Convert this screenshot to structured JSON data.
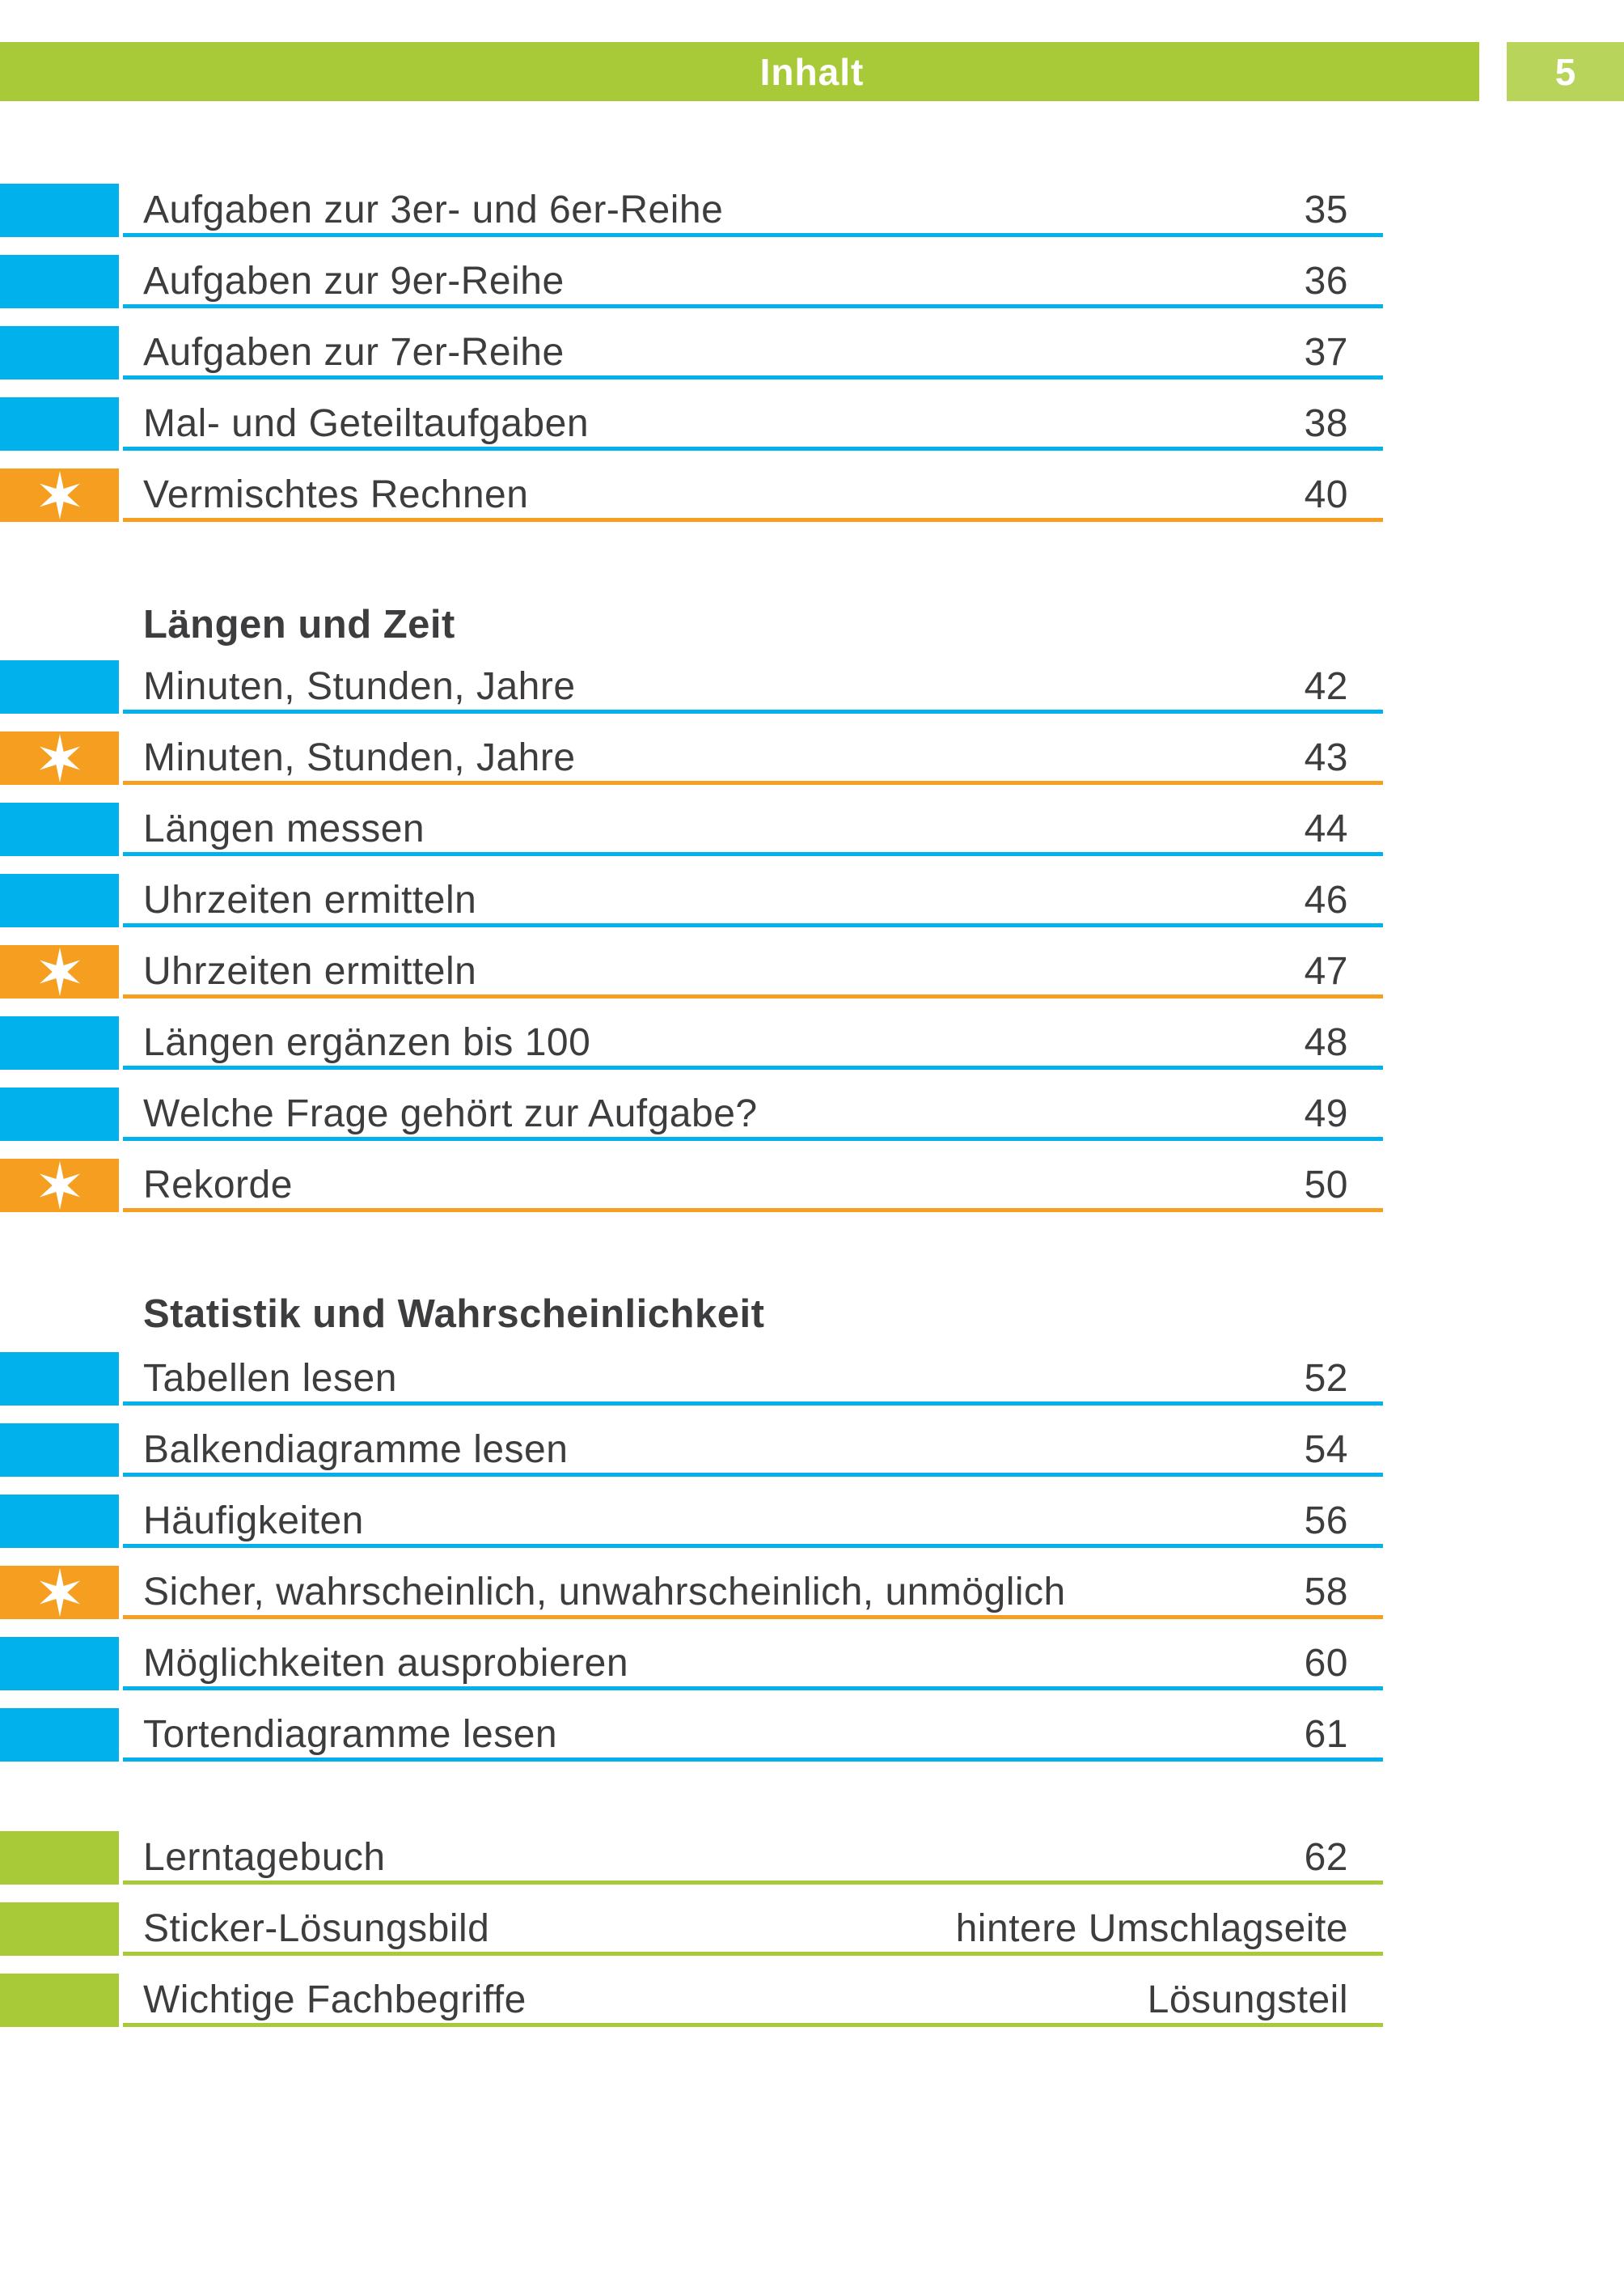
{
  "header": {
    "title": "Inhalt",
    "page_number": "5"
  },
  "colors": {
    "blue": "#00b1eb",
    "orange": "#f59e1f",
    "green": "#a9ca38",
    "green_light": "#b9d45a",
    "text": "#3d3d3f",
    "white": "#ffffff"
  },
  "icons": {
    "star": "star-icon"
  },
  "sections": [
    {
      "heading": null,
      "rows": [
        {
          "label": "Aufgaben zur 3er- und 6er-Reihe",
          "page": "35",
          "type": "blue"
        },
        {
          "label": "Aufgaben zur 9er-Reihe",
          "page": "36",
          "type": "blue"
        },
        {
          "label": "Aufgaben zur 7er-Reihe",
          "page": "37",
          "type": "blue"
        },
        {
          "label": "Mal- und Geteiltaufgaben",
          "page": "38",
          "type": "blue"
        },
        {
          "label": "Vermischtes Rechnen",
          "page": "40",
          "type": "star"
        }
      ]
    },
    {
      "heading": "Längen und Zeit",
      "rows": [
        {
          "label": "Minuten, Stunden, Jahre",
          "page": "42",
          "type": "blue"
        },
        {
          "label": "Minuten, Stunden, Jahre",
          "page": "43",
          "type": "star"
        },
        {
          "label": "Längen messen",
          "page": "44",
          "type": "blue"
        },
        {
          "label": "Uhrzeiten ermitteln",
          "page": "46",
          "type": "blue"
        },
        {
          "label": "Uhrzeiten ermitteln",
          "page": "47",
          "type": "star"
        },
        {
          "label": "Längen ergänzen bis 100",
          "page": "48",
          "type": "blue"
        },
        {
          "label": "Welche Frage gehört zur Aufgabe?",
          "page": "49",
          "type": "blue"
        },
        {
          "label": "Rekorde",
          "page": "50",
          "type": "star"
        }
      ]
    },
    {
      "heading": "Statistik und Wahrscheinlichkeit",
      "rows": [
        {
          "label": "Tabellen lesen",
          "page": "52",
          "type": "blue"
        },
        {
          "label": "Balkendiagramme lesen",
          "page": "54",
          "type": "blue"
        },
        {
          "label": "Häufigkeiten",
          "page": "56",
          "type": "blue"
        },
        {
          "label": "Sicher, wahrscheinlich, unwahrscheinlich, unmöglich",
          "page": "58",
          "type": "star"
        },
        {
          "label": "Möglichkeiten ausprobieren",
          "page": "60",
          "type": "blue"
        },
        {
          "label": "Tortendiagramme lesen",
          "page": "61",
          "type": "blue"
        }
      ]
    },
    {
      "heading": null,
      "rows": [
        {
          "label": "Lerntagebuch",
          "page": "62",
          "type": "green"
        },
        {
          "label": "Sticker-Lösungsbild",
          "page": "hintere Umschlagseite",
          "type": "green"
        },
        {
          "label": "Wichtige Fachbegriffe",
          "page": "Lösungsteil",
          "type": "green"
        }
      ]
    }
  ]
}
